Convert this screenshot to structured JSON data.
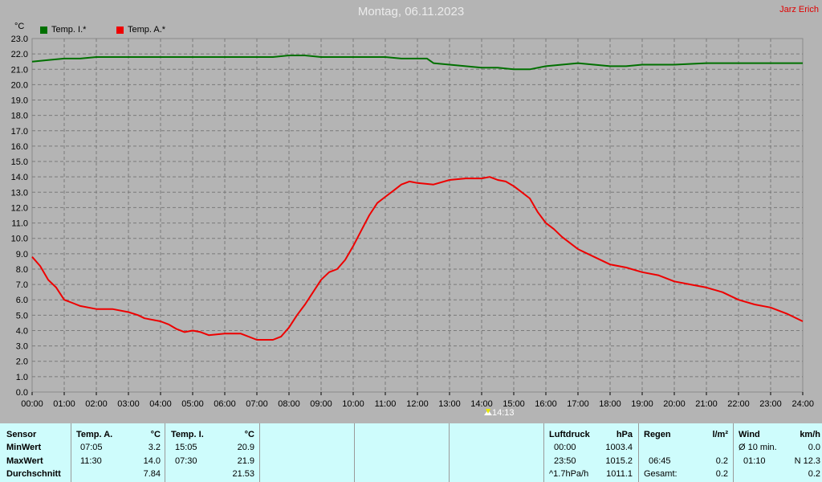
{
  "title": "Montag, 06.11.2023",
  "author": "Jarz Erich",
  "unit": "°C",
  "legend": [
    {
      "label": "Temp. I.*",
      "color": "#007000"
    },
    {
      "label": "Temp. A.*",
      "color": "#ee0000"
    }
  ],
  "marker_label": "14:13",
  "chart_data": {
    "type": "line",
    "title": "Montag, 06.11.2023",
    "ylabel": "°C",
    "xlim": [
      0,
      24
    ],
    "ylim": [
      0,
      23
    ],
    "grid": true,
    "legend_position": "top-left",
    "yticks": [
      "0.0",
      "1.0",
      "2.0",
      "3.0",
      "4.0",
      "5.0",
      "6.0",
      "7.0",
      "8.0",
      "9.0",
      "10.0",
      "11.0",
      "12.0",
      "13.0",
      "14.0",
      "15.0",
      "16.0",
      "17.0",
      "18.0",
      "19.0",
      "20.0",
      "21.0",
      "22.0",
      "23.0"
    ],
    "xticks": [
      "00:00",
      "01:00",
      "02:00",
      "03:00",
      "04:00",
      "05:00",
      "06:00",
      "07:00",
      "08:00",
      "09:00",
      "10:00",
      "11:00",
      "12:00",
      "13:00",
      "14:00",
      "15:00",
      "16:00",
      "17:00",
      "18:00",
      "19:00",
      "20:00",
      "21:00",
      "22:00",
      "23:00",
      "24:00"
    ],
    "series": [
      {
        "name": "Temp. I.*",
        "color": "#007000",
        "x": [
          0,
          0.5,
          1,
          1.5,
          2,
          3,
          4,
          5,
          6,
          7,
          7.5,
          8,
          8.5,
          9,
          10,
          11,
          11.5,
          12,
          12.3,
          12.5,
          13,
          13.5,
          14,
          14.5,
          15,
          15.5,
          16,
          16.5,
          17,
          17.5,
          18,
          18.5,
          19,
          20,
          21,
          22,
          23,
          24
        ],
        "values": [
          21.5,
          21.6,
          21.7,
          21.7,
          21.8,
          21.8,
          21.8,
          21.8,
          21.8,
          21.8,
          21.8,
          21.9,
          21.9,
          21.8,
          21.8,
          21.8,
          21.7,
          21.7,
          21.7,
          21.4,
          21.3,
          21.2,
          21.1,
          21.1,
          21.0,
          21.0,
          21.2,
          21.3,
          21.4,
          21.3,
          21.2,
          21.2,
          21.3,
          21.3,
          21.4,
          21.4,
          21.4,
          21.4
        ]
      },
      {
        "name": "Temp. A.*",
        "color": "#ee0000",
        "x": [
          0,
          0.25,
          0.5,
          0.75,
          1,
          1.25,
          1.5,
          2,
          2.5,
          3,
          3.3,
          3.5,
          4,
          4.25,
          4.5,
          4.75,
          5,
          5.25,
          5.5,
          6,
          6.5,
          7,
          7.5,
          7.75,
          8,
          8.25,
          8.5,
          8.75,
          9,
          9.25,
          9.5,
          9.75,
          10,
          10.25,
          10.5,
          10.75,
          11,
          11.25,
          11.5,
          11.75,
          12,
          12.5,
          13,
          13.5,
          14,
          14.25,
          14.5,
          14.75,
          15,
          15.25,
          15.5,
          15.75,
          16,
          16.25,
          16.5,
          17,
          17.5,
          18,
          18.5,
          19,
          19.5,
          20,
          20.5,
          21,
          21.5,
          22,
          22.5,
          23,
          23.5,
          24
        ],
        "values": [
          8.8,
          8.2,
          7.3,
          6.8,
          6.0,
          5.8,
          5.6,
          5.4,
          5.4,
          5.2,
          5.0,
          4.8,
          4.6,
          4.4,
          4.1,
          3.9,
          4.0,
          3.9,
          3.7,
          3.8,
          3.8,
          3.4,
          3.4,
          3.6,
          4.2,
          5.0,
          5.7,
          6.5,
          7.3,
          7.8,
          8.0,
          8.6,
          9.5,
          10.5,
          11.5,
          12.3,
          12.7,
          13.1,
          13.5,
          13.7,
          13.6,
          13.5,
          13.8,
          13.9,
          13.9,
          14.0,
          13.8,
          13.7,
          13.4,
          13.0,
          12.6,
          11.7,
          11.0,
          10.6,
          10.1,
          9.3,
          8.8,
          8.3,
          8.1,
          7.8,
          7.6,
          7.2,
          7.0,
          6.8,
          6.5,
          6.0,
          5.7,
          5.5,
          5.1,
          4.6
        ]
      }
    ]
  },
  "table": {
    "headers": [
      "Sensor",
      "Temp. A.",
      "°C",
      "Temp. I.",
      "°C",
      "Luftdruck",
      "hPa",
      "Regen",
      "l/m²",
      "Wind",
      "km/h"
    ],
    "row_labels": [
      "MinWert",
      "MaxWert",
      "Durchschnitt"
    ],
    "temp_a": [
      [
        "07:05",
        "3.2"
      ],
      [
        "11:30",
        "14.0"
      ],
      [
        "",
        "7.84"
      ]
    ],
    "temp_i": [
      [
        "15:05",
        "20.9"
      ],
      [
        "07:30",
        "21.9"
      ],
      [
        "",
        "21.53"
      ]
    ],
    "pressure": [
      [
        "00:00",
        "1003.4"
      ],
      [
        "23:50",
        "1015.2"
      ],
      [
        "^1.7hPa/h",
        "1011.1"
      ]
    ],
    "rain": [
      [
        "",
        ""
      ],
      [
        "06:45",
        "0.2"
      ],
      [
        "Gesamt:",
        "0.2"
      ]
    ],
    "wind": [
      [
        "Ø 10 min.",
        "0.0"
      ],
      [
        "01:10",
        "N 12.3"
      ],
      [
        "",
        "0.2"
      ]
    ]
  }
}
